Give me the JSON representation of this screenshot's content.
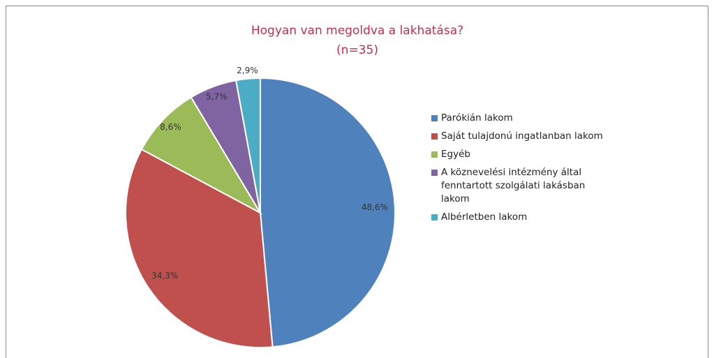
{
  "chart_data": {
    "type": "pie",
    "title": "Hogyan van megoldva a lakhatása?",
    "subtitle": "(n=35)",
    "categories": [
      "Parókián lakom",
      "Saját tulajdonú ingatlanban lakom",
      "Egyéb",
      "A köznevelési intézmény által fenntartott szolgálati lakásban lakom",
      "Albérletben lakom"
    ],
    "values": [
      48.6,
      34.3,
      8.6,
      5.7,
      2.9
    ],
    "value_labels": [
      "48,6%",
      "34,3%",
      "8,6%",
      "5,7%",
      "2,9%"
    ],
    "colors": [
      "#4f81bd",
      "#c0504d",
      "#9bbb59",
      "#8064a2",
      "#4bacc6"
    ],
    "legend": "right"
  }
}
